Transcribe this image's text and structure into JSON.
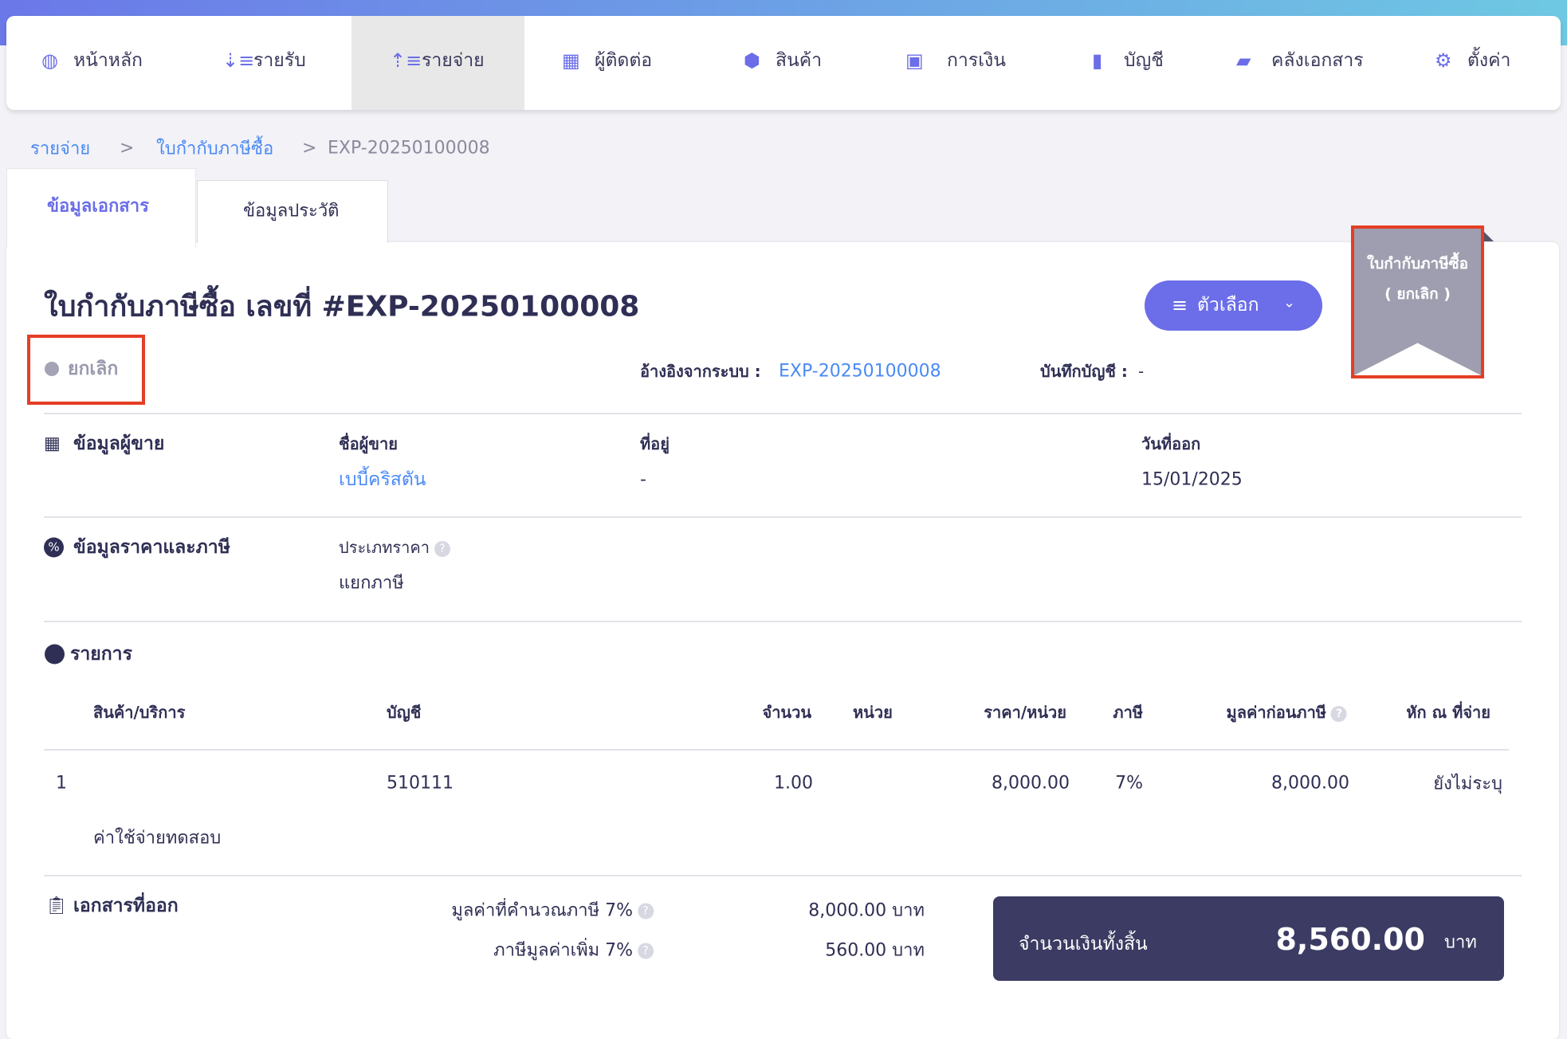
{
  "nav": {
    "items": [
      {
        "label": "หน้าหลัก",
        "icon": "dashboard-icon"
      },
      {
        "label": "รายรับ",
        "icon": "income-icon"
      },
      {
        "label": "รายจ่าย",
        "icon": "expense-icon",
        "active": true
      },
      {
        "label": "ผู้ติดต่อ",
        "icon": "contacts-icon"
      },
      {
        "label": "สินค้า",
        "icon": "product-box-icon"
      },
      {
        "label": "การเงิน",
        "icon": "money-icon"
      },
      {
        "label": "บัญชี",
        "icon": "ledger-book-icon"
      },
      {
        "label": "คลังเอกสาร",
        "icon": "folder-icon"
      },
      {
        "label": "ตั้งค่า",
        "icon": "gear-icon"
      }
    ]
  },
  "breadcrumb": {
    "items": [
      "รายจ่าย",
      "ใบกำกับภาษีซื้อ",
      "EXP-20250100008"
    ],
    "separator": ">"
  },
  "tabs": [
    "ข้อมูลเอกสาร",
    "ข้อมูลประวัติ"
  ],
  "doc": {
    "title": "ใบกำกับภาษีซื้อ เลขที่ #EXP-20250100008",
    "status": "ยกเลิก",
    "options_label": "ตัวเลือก",
    "ref_label": "อ้างอิงจากระบบ :",
    "ref_value": "EXP-20250100008",
    "booking_label": "บันทึกบัญชี :",
    "booking_value": "-",
    "ribbon_line1": "ใบกำกับภาษีซื้อ",
    "ribbon_line2": "( ยกเลิก )"
  },
  "vendor": {
    "section": "ข้อมูลผู้ขาย",
    "name_label": "ชื่อผู้ขาย",
    "name": "เบบี้คริสตัน",
    "address_label": "ที่อยู่",
    "address": "-",
    "date_label": "วันที่ออก",
    "date": "15/01/2025"
  },
  "pricing": {
    "section": "ข้อมูลราคาและภาษี",
    "type_label": "ประเภทราคา",
    "type": "แยกภาษี"
  },
  "items": {
    "section": "รายการ",
    "headers": [
      "สินค้า/บริการ",
      "บัญชี",
      "จำนวน",
      "หน่วย",
      "ราคา/หน่วย",
      "ภาษี",
      "มูลค่าก่อนภาษี",
      "หัก ณ ที่จ่าย"
    ],
    "rows": [
      {
        "no": "1",
        "account": "510111",
        "qty": "1.00",
        "unit": "",
        "price": "8,000.00",
        "tax": "7%",
        "pretax": "8,000.00",
        "wht": "ยังไม่ระบุ",
        "desc": "ค่าใช้จ่ายทดสอบ"
      }
    ]
  },
  "summary": {
    "section": "เอกสารที่ออก",
    "taxable_label": "มูลค่าที่คำนวณภาษี 7%",
    "taxable": "8,000.00 บาท",
    "vat_label": "ภาษีมูลค่าเพิ่ม 7%",
    "vat": "560.00 บาท",
    "total_label": "จำนวนเงินทั้งสิ้น",
    "total": "8,560.00",
    "currency": "บาท"
  },
  "colors": {
    "primary": "#6b6ee8",
    "link": "#4a8af4",
    "text": "#2f2f55",
    "total_bg": "#3b3b63",
    "ribbon": "#9e9eb0",
    "highlight": "#e53e25"
  }
}
